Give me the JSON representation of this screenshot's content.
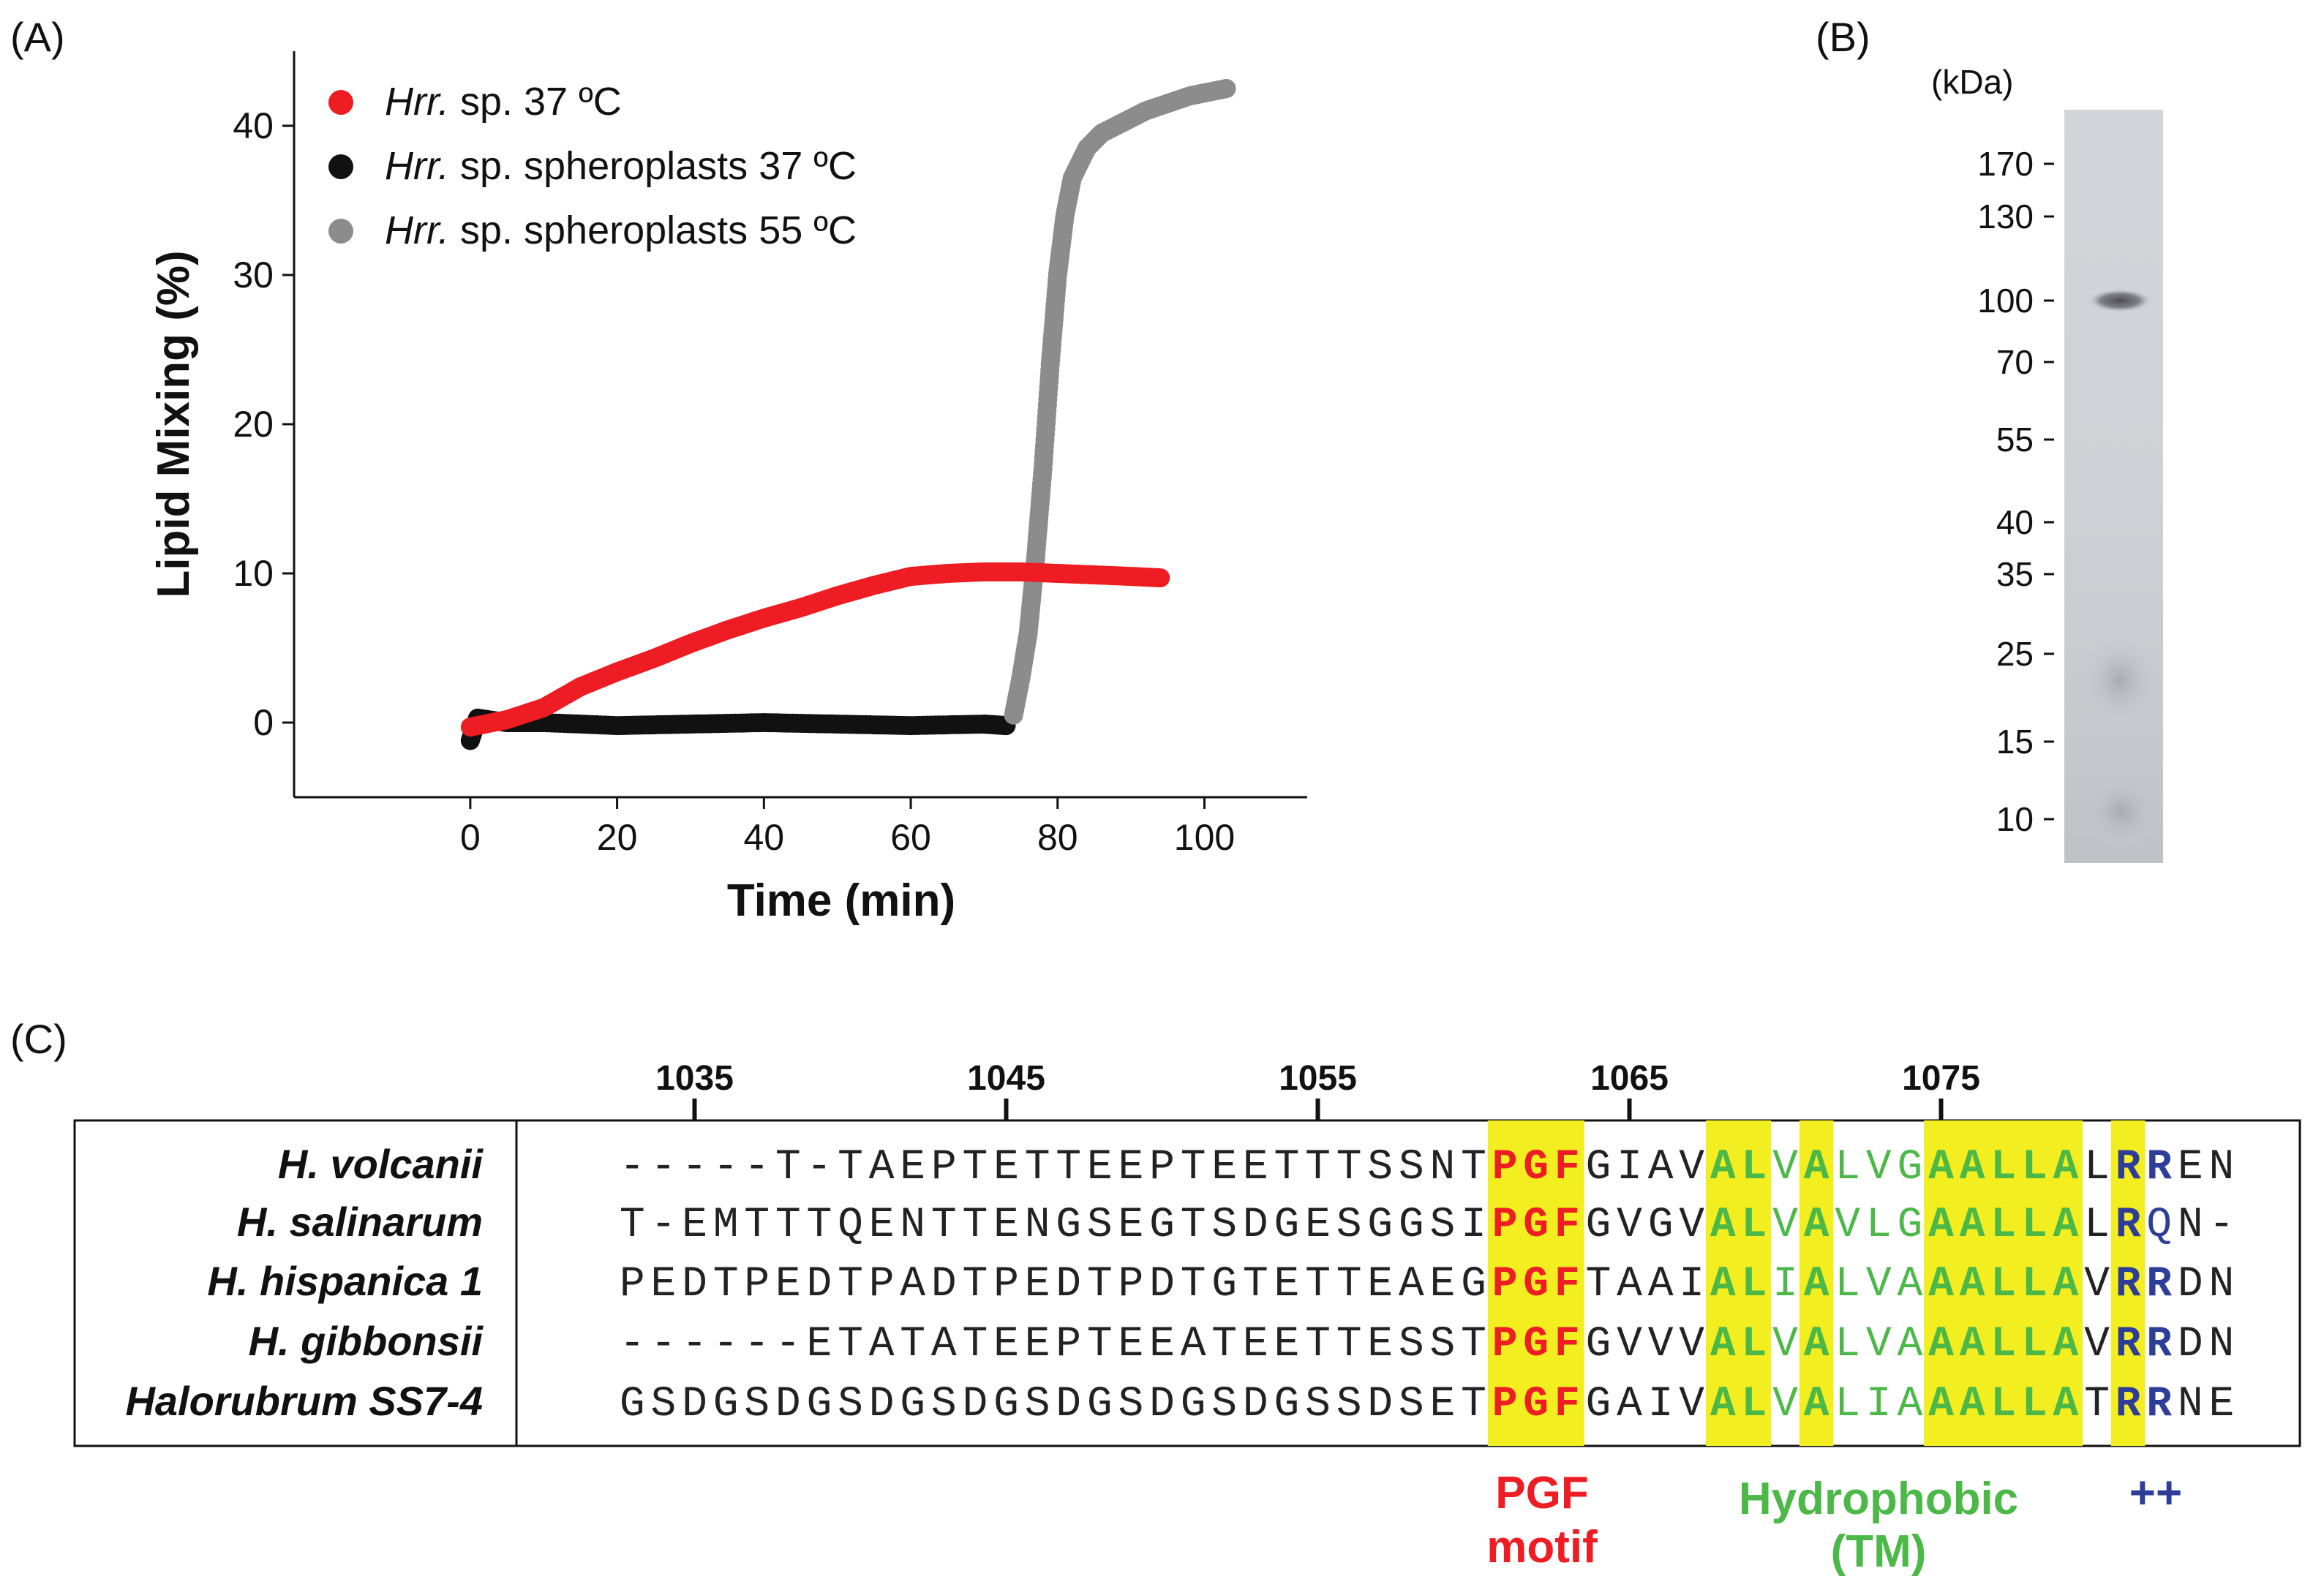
{
  "panels": {
    "a": "(A)",
    "b": "(B)",
    "c": "(C)"
  },
  "chart_data": {
    "type": "scatter",
    "xlabel": "Time (min)",
    "ylabel": "Lipid Mixing (%)",
    "xlim": [
      -24,
      114
    ],
    "ylim": [
      -5,
      45
    ],
    "xticks": [
      0,
      20,
      40,
      60,
      80,
      100
    ],
    "yticks": [
      0,
      10,
      20,
      30,
      40
    ],
    "series": [
      {
        "name_italic": "Hrr.",
        "name_rest": " sp. 37 ºC",
        "color": "#ee1d23",
        "x": [
          0,
          5,
          10,
          15,
          20,
          25,
          30,
          35,
          40,
          45,
          50,
          55,
          60,
          65,
          70,
          75,
          80,
          85,
          90,
          94
        ],
        "y": [
          -0.3,
          0.2,
          1,
          2.4,
          3.4,
          4.3,
          5.3,
          6.2,
          7,
          7.7,
          8.5,
          9.2,
          9.8,
          10,
          10.1,
          10.1,
          10,
          9.9,
          9.8,
          9.7
        ]
      },
      {
        "name_italic": "Hrr.",
        "name_rest": " sp. spheroplasts 37 ºC",
        "color": "#111111",
        "x": [
          0,
          1,
          5,
          10,
          20,
          30,
          40,
          50,
          60,
          70,
          73
        ],
        "y": [
          -1.2,
          0.3,
          0,
          0,
          -0.2,
          -0.1,
          0,
          -0.1,
          -0.2,
          -0.1,
          -0.2
        ]
      },
      {
        "name_italic": "Hrr.",
        "name_rest": " sp. spheroplasts 55 ºC",
        "color": "#8c8c8c",
        "x": [
          74,
          75,
          76,
          77,
          78,
          79,
          80,
          81,
          82,
          84,
          86,
          88,
          90,
          92,
          95,
          98,
          100,
          103
        ],
        "y": [
          0.5,
          3,
          6,
          11,
          17,
          24,
          30,
          34,
          36.5,
          38.5,
          39.5,
          40,
          40.5,
          41,
          41.5,
          42,
          42.2,
          42.5
        ]
      }
    ]
  },
  "gel": {
    "unit": "(kDa)",
    "markers": [
      "170",
      "130",
      "100",
      "70",
      "55",
      "40",
      "35",
      "25",
      "15",
      "10"
    ]
  },
  "alignment": {
    "positions": [
      "1035",
      "1045",
      "1055",
      "1065",
      "1075"
    ],
    "rows": [
      {
        "species": "H. volcanii",
        "seq": "-----T-TAEPTETTEEPTEETTTSSNTPGFGIAVALVALVGAALLALRREN"
      },
      {
        "species": "H. salinarum",
        "seq": "T-EMTTTQENTTENGSEGTSDGESGGSIPGFGVGVALVAVLGAALLALRQN-"
      },
      {
        "species": "H. hispanica 1",
        "seq": "PEDTPEDTPADTPEDTPDTGTETTEAEGPGFTAAIALIALVAAALLAVRRDN"
      },
      {
        "species": "H. gibbonsii",
        "seq": "------ETATATEEPTEEATEETTESSTPGFGVVVALVALVAAALLAVRRDN"
      },
      {
        "species": "Halorubrum SS7-4",
        "seq": "GSDGSDGSDGSDGSDGSDGSDGSSDSETPGFGAIVALVALIAAALLATRRNE"
      }
    ],
    "annotations": {
      "pgf_line1": "PGF",
      "pgf_line2": "motif",
      "tm_line1": "Hydrophobic",
      "tm_line2": "(TM)",
      "charge": "++"
    },
    "colors": {
      "pgf": "#ee1d23",
      "tm": "#4cb848",
      "charge": "#2e3d98",
      "highlight": "#f2ee1f"
    }
  }
}
